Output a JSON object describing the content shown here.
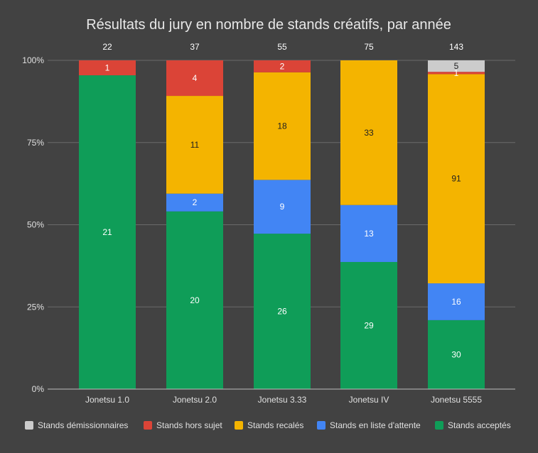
{
  "chart_data": {
    "type": "bar",
    "stacked": true,
    "normalized": true,
    "title": "Résultats du jury en nombre de stands créatifs, par année",
    "categories": [
      "Jonetsu 1.0",
      "Jonetsu 2.0",
      "Jonetsu 3.33",
      "Jonetsu IV",
      "Jonetsu 5555"
    ],
    "totals": [
      "22",
      "37",
      "55",
      "75",
      "143"
    ],
    "yticks": [
      "0%",
      "25%",
      "50%",
      "75%",
      "100%"
    ],
    "ylim": [
      0,
      100
    ],
    "grid": true,
    "legend_position": "bottom",
    "series": [
      {
        "name": "Stands acceptés",
        "color": "#0f9d58",
        "label_color": "#ffffff",
        "values": [
          21,
          20,
          26,
          29,
          30
        ]
      },
      {
        "name": "Stands en liste d'attente",
        "color": "#4285f4",
        "label_color": "#ffffff",
        "values": [
          0,
          2,
          9,
          13,
          16
        ]
      },
      {
        "name": "Stands recalés",
        "color": "#f4b400",
        "label_color": "#212121",
        "values": [
          0,
          11,
          18,
          33,
          91
        ]
      },
      {
        "name": "Stands hors sujet",
        "color": "#db4437",
        "label_color": "#ffffff",
        "values": [
          1,
          4,
          2,
          0,
          1
        ]
      },
      {
        "name": "Stands démissionnaires",
        "color": "#cccccc",
        "label_color": "#212121",
        "values": [
          0,
          0,
          0,
          0,
          5
        ]
      }
    ],
    "legend_order": [
      4,
      3,
      2,
      1,
      0
    ]
  }
}
